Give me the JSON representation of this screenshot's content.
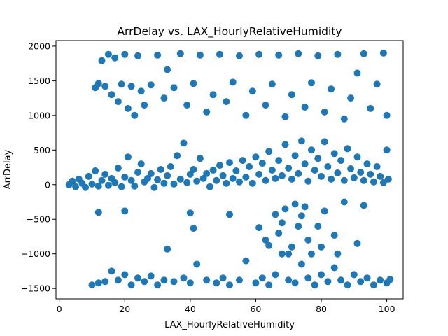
{
  "chart_data": {
    "type": "scatter",
    "title": "ArrDelay vs. LAX_HourlyRelativeHumidity",
    "xlabel": "LAX_HourlyRelativeHumidity",
    "ylabel": "ArrDelay",
    "xlim": [
      -1,
      105
    ],
    "ylim": [
      -1650,
      2080
    ],
    "xticks": [
      0,
      20,
      40,
      60,
      80,
      100
    ],
    "yticks": [
      -1500,
      -1000,
      -500,
      0,
      500,
      1000,
      1500,
      2000
    ],
    "grid": false,
    "legend": "none",
    "marker_color": "#1f77b4",
    "series": [
      {
        "points": [
          [
            3,
            0
          ],
          [
            4,
            50
          ],
          [
            5,
            -30
          ],
          [
            6,
            80
          ],
          [
            7,
            20
          ],
          [
            8,
            -40
          ],
          [
            9,
            120
          ],
          [
            10,
            10
          ],
          [
            11,
            200
          ],
          [
            12,
            -20
          ],
          [
            13,
            60
          ],
          [
            14,
            150
          ],
          [
            15,
            -10
          ],
          [
            16,
            90
          ],
          [
            17,
            30
          ],
          [
            18,
            240
          ],
          [
            19,
            -30
          ],
          [
            20,
            110
          ],
          [
            21,
            400
          ],
          [
            22,
            60
          ],
          [
            23,
            -20
          ],
          [
            24,
            180
          ],
          [
            25,
            300
          ],
          [
            26,
            40
          ],
          [
            27,
            90
          ],
          [
            28,
            160
          ],
          [
            29,
            -40
          ],
          [
            30,
            70
          ],
          [
            31,
            220
          ],
          [
            32,
            20
          ],
          [
            33,
            130
          ],
          [
            34,
            260
          ],
          [
            35,
            10
          ],
          [
            36,
            420
          ],
          [
            37,
            80
          ],
          [
            38,
            600
          ],
          [
            39,
            30
          ],
          [
            40,
            150
          ],
          [
            41,
            220
          ],
          [
            42,
            50
          ],
          [
            43,
            380
          ],
          [
            44,
            90
          ],
          [
            45,
            160
          ],
          [
            46,
            -30
          ],
          [
            47,
            210
          ],
          [
            48,
            60
          ],
          [
            49,
            280
          ],
          [
            50,
            130
          ],
          [
            51,
            20
          ],
          [
            52,
            320
          ],
          [
            53,
            90
          ],
          [
            54,
            200
          ],
          [
            55,
            40
          ],
          [
            56,
            350
          ],
          [
            57,
            110
          ],
          [
            58,
            260
          ],
          [
            59,
            20
          ],
          [
            60,
            400
          ],
          [
            61,
            150
          ],
          [
            62,
            310
          ],
          [
            63,
            60
          ],
          [
            64,
            480
          ],
          [
            65,
            210
          ],
          [
            66,
            90
          ],
          [
            67,
            350
          ],
          [
            68,
            130
          ],
          [
            69,
            580
          ],
          [
            70,
            240
          ],
          [
            71,
            80
          ],
          [
            72,
            420
          ],
          [
            73,
            160
          ],
          [
            74,
            630
          ],
          [
            75,
            300
          ],
          [
            76,
            50
          ],
          [
            77,
            500
          ],
          [
            78,
            210
          ],
          [
            79,
            380
          ],
          [
            80,
            120
          ],
          [
            81,
            620
          ],
          [
            82,
            260
          ],
          [
            83,
            80
          ],
          [
            84,
            450
          ],
          [
            85,
            170
          ],
          [
            86,
            350
          ],
          [
            87,
            60
          ],
          [
            88,
            520
          ],
          [
            89,
            230
          ],
          [
            90,
            100
          ],
          [
            91,
            400
          ],
          [
            92,
            180
          ],
          [
            93,
            60
          ],
          [
            94,
            300
          ],
          [
            95,
            150
          ],
          [
            96,
            40
          ],
          [
            97,
            260
          ],
          [
            98,
            120
          ],
          [
            99,
            30
          ],
          [
            100,
            500
          ],
          [
            100.5,
            80
          ],
          [
            11,
            1400
          ],
          [
            12,
            1460
          ],
          [
            13,
            1790
          ],
          [
            14,
            1420
          ],
          [
            15,
            1880
          ],
          [
            16,
            1300
          ],
          [
            17,
            1830
          ],
          [
            18,
            1200
          ],
          [
            19,
            1450
          ],
          [
            20,
            1880
          ],
          [
            21,
            1100
          ],
          [
            22,
            1420
          ],
          [
            23,
            1000
          ],
          [
            24,
            1860
          ],
          [
            25,
            1350
          ],
          [
            26,
            1150
          ],
          [
            28,
            1440
          ],
          [
            30,
            1870
          ],
          [
            32,
            1250
          ],
          [
            33,
            1660
          ],
          [
            35,
            1400
          ],
          [
            37,
            1890
          ],
          [
            39,
            1150
          ],
          [
            41,
            1460
          ],
          [
            43,
            1870
          ],
          [
            45,
            1050
          ],
          [
            47,
            1300
          ],
          [
            49,
            1880
          ],
          [
            51,
            1200
          ],
          [
            53,
            1480
          ],
          [
            55,
            1860
          ],
          [
            57,
            1000
          ],
          [
            59,
            1350
          ],
          [
            61,
            1880
          ],
          [
            63,
            1150
          ],
          [
            65,
            1450
          ],
          [
            67,
            1870
          ],
          [
            69,
            980
          ],
          [
            71,
            1300
          ],
          [
            73,
            1890
          ],
          [
            75,
            1120
          ],
          [
            77,
            1470
          ],
          [
            79,
            1860
          ],
          [
            81,
            1050
          ],
          [
            83,
            1380
          ],
          [
            85,
            1880
          ],
          [
            87,
            950
          ],
          [
            89,
            1250
          ],
          [
            91,
            1610
          ],
          [
            93,
            1890
          ],
          [
            95,
            1100
          ],
          [
            97,
            1450
          ],
          [
            99,
            1900
          ],
          [
            100,
            1000
          ],
          [
            10,
            -1450
          ],
          [
            12,
            -1420
          ],
          [
            14,
            -1400
          ],
          [
            16,
            -1250
          ],
          [
            18,
            -1380
          ],
          [
            20,
            -1300
          ],
          [
            22,
            -1450
          ],
          [
            24,
            -1350
          ],
          [
            26,
            -1400
          ],
          [
            28,
            -1320
          ],
          [
            30,
            -1450
          ],
          [
            32,
            -1380
          ],
          [
            33,
            -930
          ],
          [
            35,
            -1400
          ],
          [
            38,
            -1350
          ],
          [
            40,
            -1420
          ],
          [
            42,
            -1150
          ],
          [
            45,
            -1380
          ],
          [
            48,
            -1420
          ],
          [
            50,
            -1350
          ],
          [
            52,
            -1450
          ],
          [
            55,
            -1380
          ],
          [
            57,
            -1100
          ],
          [
            60,
            -1420
          ],
          [
            62,
            -1350
          ],
          [
            64,
            -1450
          ],
          [
            66,
            -1300
          ],
          [
            68,
            -1000
          ],
          [
            70,
            -1380
          ],
          [
            72,
            -1420
          ],
          [
            74,
            -1150
          ],
          [
            76,
            -1350
          ],
          [
            78,
            -1450
          ],
          [
            80,
            -1300
          ],
          [
            82,
            -1400
          ],
          [
            84,
            -1200
          ],
          [
            86,
            -1380
          ],
          [
            88,
            -1450
          ],
          [
            90,
            -1300
          ],
          [
            92,
            -1400
          ],
          [
            94,
            -1350
          ],
          [
            96,
            -1450
          ],
          [
            98,
            -1380
          ],
          [
            100,
            -1420
          ],
          [
            101,
            -1370
          ],
          [
            12,
            -400
          ],
          [
            20,
            -380
          ],
          [
            40,
            -410
          ],
          [
            41,
            -630
          ],
          [
            52,
            -430
          ],
          [
            61,
            -620
          ],
          [
            63,
            -800
          ],
          [
            64,
            -880
          ],
          [
            66,
            -430
          ],
          [
            67,
            -700
          ],
          [
            68,
            -550
          ],
          [
            69,
            -350
          ],
          [
            70,
            -1000
          ],
          [
            71,
            -900
          ],
          [
            72,
            -280
          ],
          [
            73,
            -600
          ],
          [
            74,
            -450
          ],
          [
            75,
            -320
          ],
          [
            76,
            -800
          ],
          [
            77,
            -1000
          ],
          [
            79,
            -600
          ],
          [
            80,
            -900
          ],
          [
            81,
            -380
          ],
          [
            84,
            -730
          ],
          [
            85,
            -1000
          ],
          [
            87,
            -250
          ],
          [
            91,
            -850
          ],
          [
            93,
            -300
          ]
        ]
      }
    ]
  }
}
